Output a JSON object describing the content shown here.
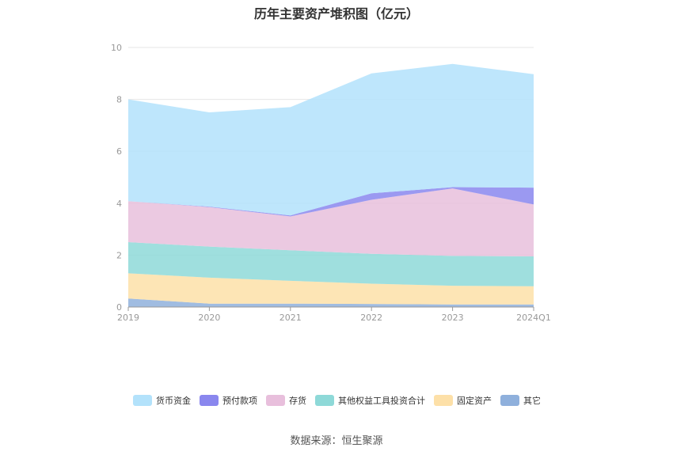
{
  "chart_data": {
    "type": "area",
    "stacked": true,
    "title": "历年主要资产堆积图（亿元）",
    "xlabel": "",
    "ylabel": "",
    "categories": [
      "2019",
      "2020",
      "2021",
      "2022",
      "2023",
      "2024Q1"
    ],
    "ylim": [
      0,
      10
    ],
    "yticks": [
      "0",
      "2",
      "4",
      "6",
      "8",
      "10"
    ],
    "grid": true,
    "legend_position": "bottom",
    "series": [
      {
        "name": "其它",
        "color": "#8fb0dc",
        "values": [
          0.33,
          0.13,
          0.13,
          0.12,
          0.1,
          0.1
        ]
      },
      {
        "name": "固定资产",
        "color": "#fde0a8",
        "values": [
          0.97,
          1.0,
          0.88,
          0.78,
          0.72,
          0.7
        ]
      },
      {
        "name": "其他权益工具投资合计",
        "color": "#8ed9d8",
        "values": [
          1.2,
          1.2,
          1.18,
          1.15,
          1.15,
          1.15
        ]
      },
      {
        "name": "存货",
        "color": "#e8bfdc",
        "values": [
          1.58,
          1.52,
          1.3,
          2.08,
          2.6,
          2.0
        ]
      },
      {
        "name": "预付款项",
        "color": "#8a87ee",
        "values": [
          0.0,
          0.02,
          0.04,
          0.25,
          0.05,
          0.65
        ]
      },
      {
        "name": "货币资金",
        "color": "#b3e2fb",
        "values": [
          3.92,
          3.63,
          4.17,
          4.62,
          4.75,
          4.37
        ]
      }
    ],
    "legend_order": [
      "货币资金",
      "预付款项",
      "存货",
      "其他权益工具投资合计",
      "固定资产",
      "其它"
    ]
  },
  "source_label": "数据来源：恒生聚源"
}
